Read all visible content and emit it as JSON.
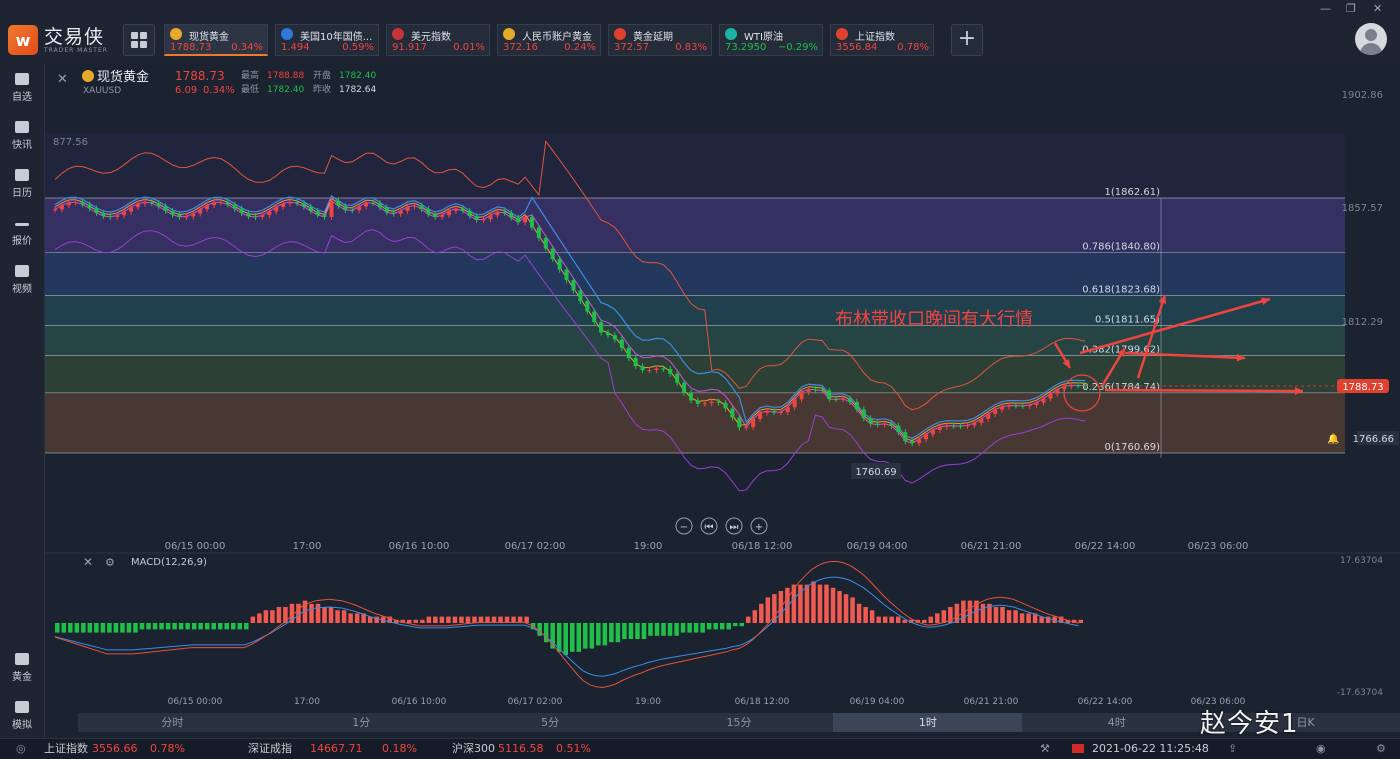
{
  "app": {
    "name": "交易侠",
    "subname": "TRADER MASTER"
  },
  "tabs": [
    {
      "name": "现货黄金",
      "price": "1788.73",
      "change": "0.34%",
      "color": "red",
      "icon_color": "#e7a92a",
      "active": true
    },
    {
      "name": "美国10年国债...",
      "price": "1.494",
      "change": "0.59%",
      "color": "red",
      "icon_color": "#2d7ad8",
      "active": false
    },
    {
      "name": "美元指数",
      "price": "91.917",
      "change": "0.01%",
      "color": "red",
      "icon_color": "#c8333a",
      "active": false
    },
    {
      "name": "人民币账户黄金",
      "price": "372.16",
      "change": "0.24%",
      "color": "red",
      "icon_color": "#e7a92a",
      "active": false
    },
    {
      "name": "黄金延期",
      "price": "372.57",
      "change": "0.83%",
      "color": "red",
      "icon_color": "#e0412e",
      "active": false
    },
    {
      "name": "WTI原油",
      "price": "73.2950",
      "change": "−0.29%",
      "color": "green",
      "icon_color": "#1db3a3",
      "active": false
    },
    {
      "name": "上证指数",
      "price": "3556.84",
      "change": "0.78%",
      "color": "red",
      "icon_color": "#e0412e",
      "active": false
    }
  ],
  "sidebar": {
    "top": [
      "自选",
      "快讯",
      "日历",
      "报价",
      "视频"
    ],
    "bottom": [
      "黄金",
      "模拟"
    ]
  },
  "instrument": {
    "name": "现货黄金",
    "code": "XAUUSD",
    "price": "1788.73",
    "change": "6.09",
    "change_pct": "0.34%",
    "high_label": "最高",
    "high": "1788.88",
    "open_label": "开盘",
    "open": "1782.40",
    "low_label": "最低",
    "low": "1782.40",
    "prev_label": "昨收",
    "prev": "1782.64"
  },
  "chart_data": {
    "type": "candlestick",
    "price_axis": [
      "1902.86",
      "1857.57",
      "1812.29"
    ],
    "left_label": "877.56",
    "fib_levels": [
      {
        "label": "1(1862.61)",
        "value": 1862.61
      },
      {
        "label": "0.786(1840.80)",
        "value": 1840.8
      },
      {
        "label": "0.618(1823.68)",
        "value": 1823.68
      },
      {
        "label": "0.5(1811.65)",
        "value": 1811.65
      },
      {
        "label": "0.382(1799.62)",
        "value": 1799.62
      },
      {
        "label": "0.236(1784.74)",
        "value": 1784.74
      },
      {
        "label": "0(1760.69)",
        "value": 1760.69
      }
    ],
    "fib_band_colors": [
      "#4a3a8c",
      "#2b4a84",
      "#245a68",
      "#2e6054",
      "#3b5a3c",
      "#6b4a38"
    ],
    "last_price": "1788.73",
    "alert_price": "1766.66",
    "low_marker": "1760.69",
    "annotation": "布林带收口晚间有大行情",
    "x_labels": [
      "06/15 00:00",
      "17:00",
      "06/16 10:00",
      "06/17 02:00",
      "19:00",
      "06/18 12:00",
      "06/19 04:00",
      "06/21 21:00",
      "06/22 14:00",
      "06/23 06:00"
    ],
    "macd": {
      "label": "MACD(12,26,9)",
      "axis_top": "17.63704",
      "axis_bottom": "-17.63704",
      "hist": [
        -3,
        -3,
        -3,
        -3,
        -3,
        -3,
        -3,
        -3,
        -3,
        -3,
        -3,
        -3,
        -3,
        -2,
        -2,
        -2,
        -2,
        -2,
        -2,
        -2,
        -2,
        -2,
        -2,
        -2,
        -2,
        -2,
        -2,
        -2,
        -2,
        -2,
        2,
        3,
        4,
        4,
        5,
        5,
        6,
        6,
        7,
        6,
        6,
        5,
        5,
        4,
        4,
        3,
        3,
        3,
        2,
        2,
        2,
        2,
        1,
        1,
        1,
        1,
        1,
        2,
        2,
        2,
        2,
        2,
        2,
        2,
        2,
        2,
        2,
        2,
        2,
        2,
        2,
        2,
        2,
        -2,
        -4,
        -6,
        -8,
        -9,
        -10,
        -9,
        -9,
        -8,
        -8,
        -7,
        -7,
        -6,
        -6,
        -5,
        -5,
        -5,
        -5,
        -4,
        -4,
        -4,
        -4,
        -4,
        -3,
        -3,
        -3,
        -3,
        -2,
        -2,
        -2,
        -2,
        -1,
        -1,
        2,
        4,
        6,
        8,
        9,
        10,
        11,
        12,
        12,
        12,
        13,
        12,
        12,
        11,
        10,
        9,
        8,
        6,
        5,
        4,
        2,
        2,
        2,
        2,
        1,
        1,
        1,
        1,
        2,
        3,
        4,
        5,
        6,
        7,
        7,
        7,
        6,
        6,
        5,
        5,
        4,
        4,
        3,
        3,
        3,
        2,
        2,
        2,
        2,
        1,
        1,
        1
      ],
      "x_labels": [
        "06/15 00:00",
        "17:00",
        "06/16 10:00",
        "06/17 02:00",
        "19:00",
        "06/18 12:00",
        "06/19 04:00",
        "06/21 21:00",
        "06/22 14:00",
        "06/23 06:00"
      ]
    }
  },
  "timeframes": [
    {
      "label": "分时",
      "selected": false
    },
    {
      "label": "1分",
      "selected": false
    },
    {
      "label": "5分",
      "selected": false
    },
    {
      "label": "15分",
      "selected": false
    },
    {
      "label": "1时",
      "selected": true
    },
    {
      "label": "4时",
      "selected": false
    },
    {
      "label": "日K",
      "selected": false
    }
  ],
  "status": {
    "idx1_name": "上证指数",
    "idx1_val": "3556.66",
    "idx1_pct": "0.78%",
    "idx2_name": "深证成指",
    "idx2_val": "14667.71",
    "idx2_pct": "0.18%",
    "idx3_name": "沪深300",
    "idx3_val": "5116.58",
    "idx3_pct": "0.51%",
    "datetime": "2021-06-22 11:25:48"
  },
  "watermark": "赵今安1"
}
